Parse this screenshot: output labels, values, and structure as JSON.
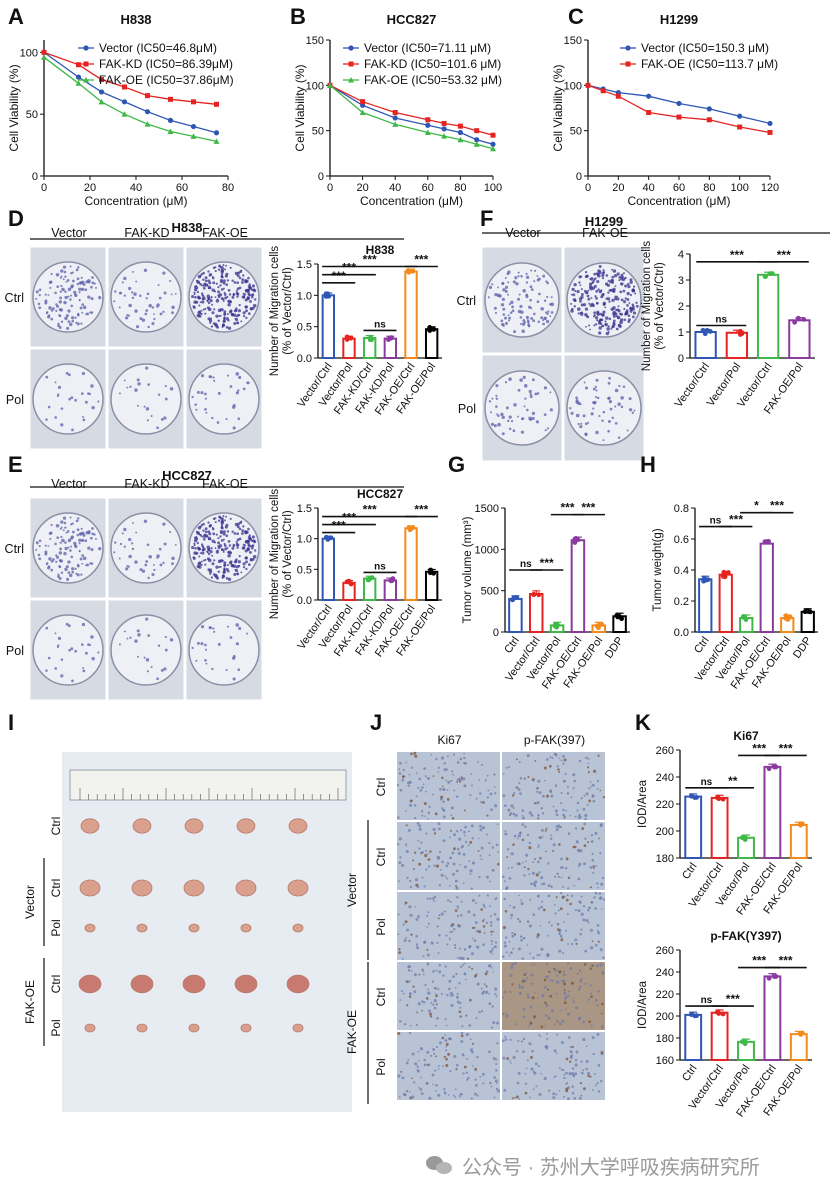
{
  "panel_letters": [
    "A",
    "B",
    "C",
    "D",
    "F",
    "E",
    "G",
    "H",
    "I",
    "J",
    "K"
  ],
  "colors": {
    "blue": "#2f56b5",
    "red": "#e52421",
    "green": "#3fb847",
    "purple": "#8a3a9e",
    "orange": "#f28a1e",
    "black": "#000000",
    "tissue_bg": "#e9eef5"
  },
  "chart_data": [
    {
      "id": "A",
      "type": "line",
      "title": "H838",
      "xlabel": "Concentration (μM)",
      "ylabel": "Cell Viability (%)",
      "xlim": [
        0,
        80
      ],
      "ylim": [
        0,
        110
      ],
      "xticks": [
        0,
        20,
        40,
        60,
        80
      ],
      "yticks": [
        0,
        50,
        100
      ],
      "legend_position": "top-right",
      "series": [
        {
          "name": "Vector (IC50=46.8μM)",
          "color": "#2f56b5",
          "marker": "circle",
          "x": [
            0,
            15,
            25,
            35,
            45,
            55,
            65,
            75
          ],
          "y": [
            100,
            80,
            68,
            60,
            52,
            45,
            40,
            35
          ]
        },
        {
          "name": "FAK-KD (IC50=86.39μM)",
          "color": "#e52421",
          "marker": "square",
          "x": [
            0,
            15,
            25,
            35,
            45,
            55,
            65,
            75
          ],
          "y": [
            100,
            90,
            78,
            72,
            65,
            62,
            60,
            58
          ]
        },
        {
          "name": "FAK-OE (IC50=37.86μM)",
          "color": "#3fb847",
          "marker": "triangle",
          "x": [
            0,
            15,
            25,
            35,
            45,
            55,
            65,
            75
          ],
          "y": [
            96,
            75,
            60,
            50,
            42,
            36,
            32,
            28
          ]
        }
      ]
    },
    {
      "id": "B",
      "type": "line",
      "title": "HCC827",
      "xlabel": "Concentration (μM)",
      "ylabel": "Cell Viability (%)",
      "xlim": [
        0,
        100
      ],
      "ylim": [
        0,
        150
      ],
      "xticks": [
        0,
        20,
        40,
        60,
        80,
        100
      ],
      "yticks": [
        0,
        50,
        100,
        150
      ],
      "legend_position": "top-right",
      "series": [
        {
          "name": "Vector (IC50=71.11 μM)",
          "color": "#2f56b5",
          "marker": "circle",
          "x": [
            0,
            20,
            40,
            60,
            70,
            80,
            90,
            100
          ],
          "y": [
            100,
            78,
            64,
            56,
            52,
            48,
            40,
            35
          ]
        },
        {
          "name": "FAK-KD (IC50=101.6 μM)",
          "color": "#e52421",
          "marker": "square",
          "x": [
            0,
            20,
            40,
            60,
            70,
            80,
            90,
            100
          ],
          "y": [
            100,
            82,
            70,
            62,
            58,
            55,
            50,
            45
          ]
        },
        {
          "name": "FAK-OE (IC50=53.32 μM)",
          "color": "#3fb847",
          "marker": "triangle",
          "x": [
            0,
            20,
            40,
            60,
            70,
            80,
            90,
            100
          ],
          "y": [
            100,
            70,
            57,
            48,
            44,
            40,
            35,
            30
          ]
        }
      ]
    },
    {
      "id": "C",
      "type": "line",
      "title": "H1299",
      "xlabel": "Concentration (μM)",
      "ylabel": "Cell Viability (%)",
      "xlim": [
        0,
        120
      ],
      "ylim": [
        0,
        150
      ],
      "xticks": [
        0,
        20,
        40,
        60,
        80,
        100,
        120
      ],
      "yticks": [
        0,
        50,
        100,
        150
      ],
      "legend_position": "top-right",
      "series": [
        {
          "name": "Vector (IC50=150.3 μM)",
          "color": "#2f56b5",
          "marker": "circle",
          "x": [
            0,
            10,
            20,
            40,
            60,
            80,
            100,
            120
          ],
          "y": [
            100,
            96,
            92,
            88,
            80,
            74,
            66,
            58
          ]
        },
        {
          "name": "FAK-OE (IC50=113.7 μM)",
          "color": "#e52421",
          "marker": "square",
          "x": [
            0,
            10,
            20,
            40,
            60,
            80,
            100,
            120
          ],
          "y": [
            100,
            94,
            88,
            70,
            65,
            62,
            54,
            48
          ]
        }
      ]
    },
    {
      "id": "D",
      "type": "bar",
      "title": "H838",
      "ylabel": "Number of Migration cells\n(% of Vector/Ctrl)",
      "ylim": [
        0,
        1.5
      ],
      "yticks": [
        0,
        0.5,
        1.0,
        1.5
      ],
      "categories": [
        "Vector/Ctrl",
        "Vector/Pol",
        "FAK-KD/Ctrl",
        "FAK-KD/Pol",
        "FAK-OE/Ctrl",
        "FAK-OE/Pol"
      ],
      "values": [
        1.0,
        0.31,
        0.32,
        0.31,
        1.38,
        0.46
      ],
      "bar_colors": [
        "#2f56b5",
        "#e52421",
        "#3fb847",
        "#8a3a9e",
        "#f28a1e",
        "#000000"
      ],
      "significance": [
        {
          "from": 0,
          "to": 1,
          "label": "***",
          "y": 1.2
        },
        {
          "from": 0,
          "to": 2,
          "label": "***",
          "y": 1.33
        },
        {
          "from": 0,
          "to": 4,
          "label": "***",
          "y": 1.46
        },
        {
          "from": 2,
          "to": 3,
          "label": "ns",
          "y": 0.44
        },
        {
          "from": 4,
          "to": 5,
          "label": "***",
          "y": 1.46
        }
      ]
    },
    {
      "id": "F",
      "type": "bar",
      "ylabel": "Number of Migration cells\n(% of Vector/Ctrl)",
      "ylim": [
        0,
        4
      ],
      "yticks": [
        0,
        1,
        2,
        3,
        4
      ],
      "categories": [
        "Vector/Ctrl",
        "Vector/Pol",
        "Vector/Ctrl",
        "FAK-OE/Pol"
      ],
      "values": [
        1.0,
        0.97,
        3.2,
        1.45
      ],
      "bar_colors": [
        "#2f56b5",
        "#e52421",
        "#3fb847",
        "#8a3a9e"
      ],
      "significance": [
        {
          "from": 0,
          "to": 1,
          "label": "ns",
          "y": 1.25
        },
        {
          "from": 0,
          "to": 2,
          "label": "***",
          "y": 3.7
        },
        {
          "from": 2,
          "to": 3,
          "label": "***",
          "y": 3.7
        }
      ]
    },
    {
      "id": "E",
      "type": "bar",
      "title": "HCC827",
      "ylabel": "Number of Migration cells\n(% of Vector/Ctrl)",
      "ylim": [
        0,
        1.5
      ],
      "yticks": [
        0,
        0.5,
        1.0,
        1.5
      ],
      "categories": [
        "Vector/Ctrl",
        "Vector/Pol",
        "FAK-KD/Ctrl",
        "FAK-KD/Pol",
        "FAK-OE/Ctrl",
        "FAK-OE/Pol"
      ],
      "values": [
        1.0,
        0.28,
        0.35,
        0.32,
        1.17,
        0.46
      ],
      "bar_colors": [
        "#2f56b5",
        "#e52421",
        "#3fb847",
        "#8a3a9e",
        "#f28a1e",
        "#000000"
      ],
      "significance": [
        {
          "from": 0,
          "to": 1,
          "label": "***",
          "y": 1.1
        },
        {
          "from": 0,
          "to": 2,
          "label": "***",
          "y": 1.23
        },
        {
          "from": 0,
          "to": 4,
          "label": "***",
          "y": 1.36
        },
        {
          "from": 2,
          "to": 3,
          "label": "ns",
          "y": 0.45
        },
        {
          "from": 4,
          "to": 5,
          "label": "***",
          "y": 1.36
        }
      ]
    },
    {
      "id": "G",
      "type": "bar",
      "ylabel": "Tumor volume (mm³)",
      "ylim": [
        0,
        1500
      ],
      "yticks": [
        0,
        500,
        1000,
        1500
      ],
      "categories": [
        "Ctrl",
        "Vector/Ctrl",
        "Vector/Pol",
        "FAK-OE/Ctrl",
        "FAK-OE/Pol",
        "DDP"
      ],
      "values": [
        400,
        460,
        80,
        1110,
        80,
        190
      ],
      "bar_colors": [
        "#2f56b5",
        "#e52421",
        "#3fb847",
        "#8a3a9e",
        "#f28a1e",
        "#000000"
      ],
      "significance": [
        {
          "from": 0,
          "to": 1,
          "label": "ns",
          "y": 750
        },
        {
          "from": 1,
          "to": 2,
          "label": "***",
          "y": 750
        },
        {
          "from": 2,
          "to": 3,
          "label": "***",
          "y": 1420
        },
        {
          "from": 3,
          "to": 4,
          "label": "***",
          "y": 1420
        }
      ]
    },
    {
      "id": "H",
      "type": "bar",
      "ylabel": "Tumor weight(g)",
      "ylim": [
        0,
        0.8
      ],
      "yticks": [
        0.0,
        0.2,
        0.4,
        0.6,
        0.8
      ],
      "categories": [
        "Ctrl",
        "Vector/Ctrl",
        "Vector/Pol",
        "FAK-OE/Ctrl",
        "FAK-OE/Pol",
        "DDP"
      ],
      "values": [
        0.34,
        0.37,
        0.09,
        0.57,
        0.09,
        0.13
      ],
      "bar_colors": [
        "#2f56b5",
        "#e52421",
        "#3fb847",
        "#8a3a9e",
        "#f28a1e",
        "#000000"
      ],
      "significance": [
        {
          "from": 0,
          "to": 1,
          "label": "ns",
          "y": 0.68
        },
        {
          "from": 1,
          "to": 2,
          "label": "***",
          "y": 0.68
        },
        {
          "from": 2,
          "to": 3,
          "label": "*",
          "y": 0.77
        },
        {
          "from": 3,
          "to": 4,
          "label": "***",
          "y": 0.77
        }
      ]
    },
    {
      "id": "K1",
      "type": "bar",
      "title": "Ki67",
      "ylabel": "IOD/Area",
      "ylim": [
        180,
        260
      ],
      "yticks": [
        180,
        200,
        220,
        240,
        260
      ],
      "categories": [
        "Ctrl",
        "Vector/Ctrl",
        "Vector/Pol",
        "FAK-OE/Ctrl",
        "FAK-OE/Pol"
      ],
      "values": [
        225.5,
        224.5,
        195,
        247.5,
        204.5
      ],
      "bar_colors": [
        "#2f56b5",
        "#e52421",
        "#3fb847",
        "#8a3a9e",
        "#f28a1e"
      ],
      "significance": [
        {
          "from": 0,
          "to": 1,
          "label": "ns",
          "y": 232
        },
        {
          "from": 1,
          "to": 2,
          "label": "**",
          "y": 232
        },
        {
          "from": 2,
          "to": 3,
          "label": "***",
          "y": 256
        },
        {
          "from": 3,
          "to": 4,
          "label": "***",
          "y": 256
        }
      ]
    },
    {
      "id": "K2",
      "type": "bar",
      "title": "p-FAK(Y397)",
      "ylabel": "IOD/Area",
      "ylim": [
        160,
        260
      ],
      "yticks": [
        160,
        180,
        200,
        220,
        240,
        260
      ],
      "categories": [
        "Ctrl",
        "Vector/Ctrl",
        "Vector/Pol",
        "FAK-OE/Ctrl",
        "FAK-OE/Pol"
      ],
      "values": [
        201,
        203,
        176.5,
        236,
        183.5
      ],
      "bar_colors": [
        "#2f56b5",
        "#e52421",
        "#3fb847",
        "#8a3a9e",
        "#f28a1e"
      ],
      "significance": [
        {
          "from": 0,
          "to": 1,
          "label": "ns",
          "y": 209
        },
        {
          "from": 1,
          "to": 2,
          "label": "***",
          "y": 209
        },
        {
          "from": 2,
          "to": 3,
          "label": "***",
          "y": 244
        },
        {
          "from": 3,
          "to": 4,
          "label": "***",
          "y": 244
        }
      ]
    }
  ],
  "panel_D": {
    "title": "H838",
    "columns": [
      "Vector",
      "FAK-KD",
      "FAK-OE"
    ],
    "rows": [
      "Ctrl",
      "Pol"
    ],
    "density": [
      [
        0.45,
        0.18,
        0.95
      ],
      [
        0.1,
        0.08,
        0.12
      ]
    ]
  },
  "panel_F": {
    "title": "H1299",
    "columns": [
      "Vector",
      "FAK-OE"
    ],
    "rows": [
      "Ctrl",
      "Pol"
    ],
    "density": [
      [
        0.4,
        0.9
      ],
      [
        0.2,
        0.22
      ]
    ]
  },
  "panel_E": {
    "title": "HCC827",
    "columns": [
      "Vector",
      "FAK-KD",
      "FAK-OE"
    ],
    "rows": [
      "Ctrl",
      "Pol"
    ],
    "density": [
      [
        0.45,
        0.15,
        0.95
      ],
      [
        0.1,
        0.08,
        0.1
      ]
    ]
  },
  "panel_I": {
    "row_labels": [
      "Ctrl",
      "Ctrl",
      "Pol",
      "Ctrl",
      "Pol"
    ],
    "group_labels": [
      "Vector",
      "FAK-OE"
    ]
  },
  "panel_J": {
    "columns": [
      "Ki67",
      "p-FAK(397)"
    ],
    "row_labels": [
      "Ctrl",
      "Ctrl",
      "Pol",
      "Ctrl",
      "Pol"
    ],
    "group_labels": [
      "Vector",
      "FAK-OE"
    ]
  },
  "watermark": {
    "text": "公众号 · 苏州大学呼吸疾病研究所"
  }
}
